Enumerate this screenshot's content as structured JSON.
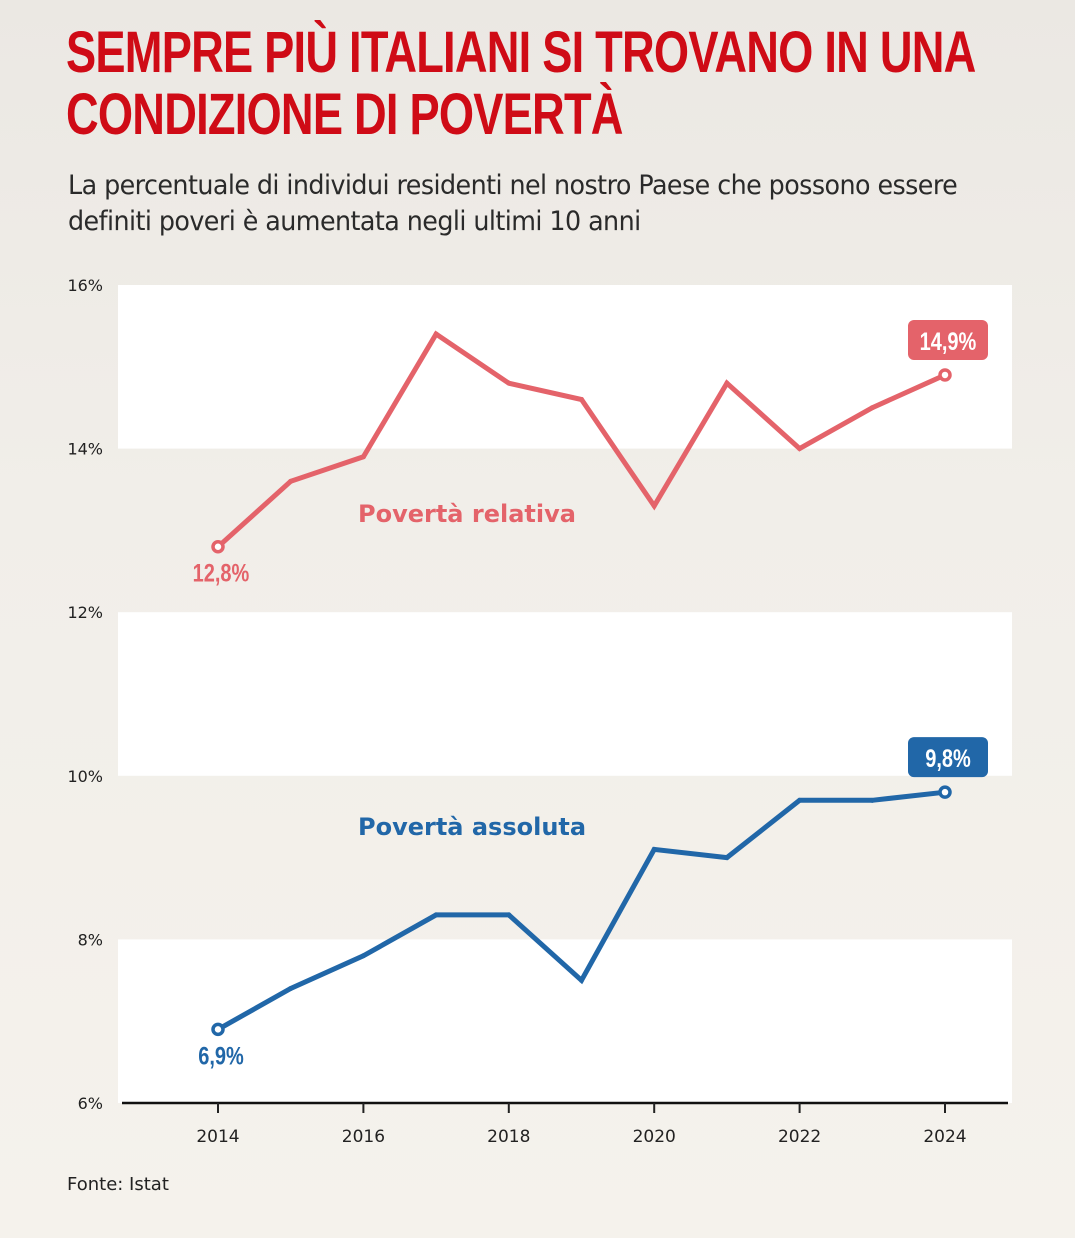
{
  "header": {
    "title": "Sempre più italiani si trovano in una condizione di povertà",
    "subtitle": "La percentuale di individui residenti nel nostro Paese che possono essere definiti poveri è aumentata negli ultimi 10 anni"
  },
  "footer": {
    "source": "Fonte: Istat"
  },
  "colors": {
    "title": "#cf0b16",
    "relative": "#e4636a",
    "absolute": "#2167a8",
    "band": "#ffffff",
    "background": "#f1eee9"
  },
  "chart_data": {
    "type": "line",
    "title": "Sempre più italiani si trovano in una condizione di povertà",
    "subtitle": "La percentuale di individui residenti nel nostro Paese che possono essere definiti poveri è aumentata negli ultimi 10 anni",
    "xlabel": "",
    "ylabel": "",
    "x": [
      2014,
      2015,
      2016,
      2017,
      2018,
      2019,
      2020,
      2021,
      2022,
      2023,
      2024
    ],
    "xticks": [
      2014,
      2016,
      2018,
      2020,
      2022,
      2024
    ],
    "xtick_labels": [
      "2014",
      "2016",
      "2018",
      "2020",
      "2022",
      "2024"
    ],
    "xlim": [
      2012.7,
      2025
    ],
    "ylim": [
      6,
      16
    ],
    "yticks": [
      6,
      8,
      10,
      12,
      14,
      16
    ],
    "ytick_labels": [
      "6%",
      "8%",
      "10%",
      "12%",
      "14%",
      "16%"
    ],
    "grid": "alternating horizontal bands",
    "legend": "inline labels",
    "series": [
      {
        "name": "Povertà relativa",
        "color": "#e4636a",
        "values": [
          12.8,
          13.6,
          13.9,
          15.4,
          14.8,
          14.6,
          13.3,
          14.8,
          14.0,
          14.5,
          14.9
        ],
        "start_label": "12,8%",
        "end_label": "14,9%"
      },
      {
        "name": "Povertà assoluta",
        "color": "#2167a8",
        "values": [
          6.9,
          7.4,
          7.8,
          8.3,
          8.3,
          7.5,
          9.1,
          9.0,
          9.7,
          9.7,
          9.8
        ],
        "start_label": "6,9%",
        "end_label": "9,8%"
      }
    ]
  }
}
